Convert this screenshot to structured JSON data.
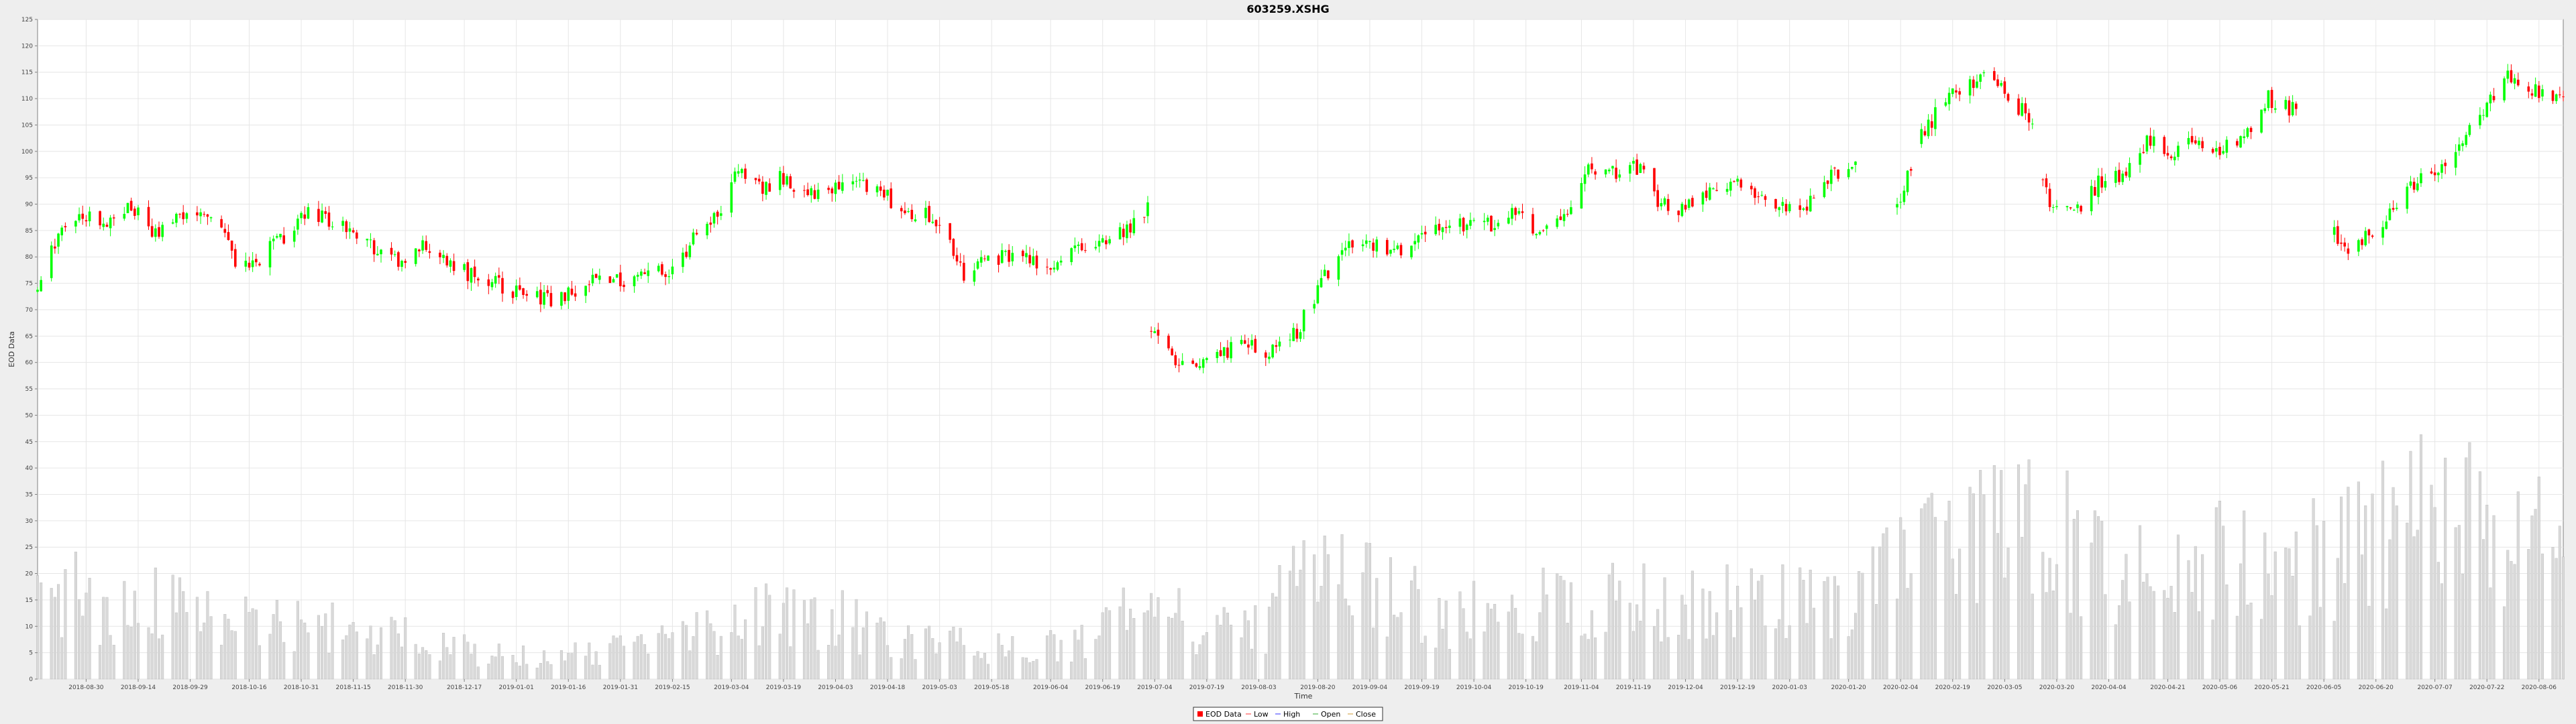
{
  "chart_data": {
    "type": "candlestick",
    "title": "603259.XSHG",
    "xlabel": "Time",
    "ylabel": "EOD Data",
    "ylim": [
      0,
      125
    ],
    "yticks": [
      0,
      5,
      10,
      15,
      20,
      25,
      30,
      35,
      40,
      45,
      50,
      55,
      60,
      65,
      70,
      75,
      80,
      85,
      90,
      95,
      100,
      105,
      110,
      115,
      120,
      125
    ],
    "x_range": [
      "2018-08-16",
      "2020-08-13"
    ],
    "xticks": [
      "2018-08-30",
      "2018-09-14",
      "2018-09-29",
      "2018-10-16",
      "2018-10-31",
      "2018-11-15",
      "2018-11-30",
      "2018-12-17",
      "2019-01-01",
      "2019-01-16",
      "2019-01-31",
      "2019-02-15",
      "2019-03-04",
      "2019-03-19",
      "2019-04-03",
      "2019-04-18",
      "2019-05-03",
      "2019-05-18",
      "2019-06-04",
      "2019-06-19",
      "2019-07-04",
      "2019-07-19",
      "2019-08-03",
      "2019-08-20",
      "2019-09-04",
      "2019-09-19",
      "2019-10-04",
      "2019-10-19",
      "2019-11-04",
      "2019-11-19",
      "2019-12-04",
      "2019-12-19",
      "2020-01-03",
      "2020-01-20",
      "2020-02-04",
      "2020-02-19",
      "2020-03-05",
      "2020-03-20",
      "2020-04-04",
      "2020-04-21",
      "2020-05-06",
      "2020-05-21",
      "2020-06-05",
      "2020-06-20",
      "2020-07-07",
      "2020-07-22",
      "2020-08-06"
    ],
    "grid": true,
    "legend_position": "bottom",
    "legend": [
      "EOD Data",
      "Low",
      "High",
      "Open",
      "Close"
    ],
    "up_color": "#00ff00",
    "down_color": "#ff0000",
    "volume_color": "#d9d9d9",
    "price_anchors": [
      [
        "2018-08-16",
        73
      ],
      [
        "2018-08-22",
        85
      ],
      [
        "2018-08-29",
        88
      ],
      [
        "2018-09-05",
        86
      ],
      [
        "2018-09-12",
        90
      ],
      [
        "2018-09-19",
        84
      ],
      [
        "2018-09-26",
        89
      ],
      [
        "2018-10-08",
        86
      ],
      [
        "2018-10-12",
        78
      ],
      [
        "2018-10-19",
        80
      ],
      [
        "2018-10-25",
        83
      ],
      [
        "2018-11-01",
        88
      ],
      [
        "2018-11-08",
        87
      ],
      [
        "2018-11-15",
        85
      ],
      [
        "2018-11-22",
        81
      ],
      [
        "2018-11-29",
        79
      ],
      [
        "2018-12-06",
        82
      ],
      [
        "2018-12-13",
        79
      ],
      [
        "2018-12-20",
        76
      ],
      [
        "2018-12-27",
        75
      ],
      [
        "2019-01-04",
        72
      ],
      [
        "2019-01-11",
        72
      ],
      [
        "2019-01-18",
        74
      ],
      [
        "2019-01-25",
        76
      ],
      [
        "2019-02-01",
        75
      ],
      [
        "2019-02-15",
        78
      ],
      [
        "2019-02-22",
        84
      ],
      [
        "2019-03-01",
        88
      ],
      [
        "2019-03-05",
        96
      ],
      [
        "2019-03-12",
        93
      ],
      [
        "2019-03-19",
        95
      ],
      [
        "2019-03-26",
        92
      ],
      [
        "2019-04-02",
        93
      ],
      [
        "2019-04-09",
        94
      ],
      [
        "2019-04-16",
        92
      ],
      [
        "2019-04-23",
        89
      ],
      [
        "2019-04-30",
        88
      ],
      [
        "2019-05-06",
        82
      ],
      [
        "2019-05-10",
        77
      ],
      [
        "2019-05-17",
        80
      ],
      [
        "2019-05-24",
        80
      ],
      [
        "2019-05-31",
        79
      ],
      [
        "2019-06-06",
        78
      ],
      [
        "2019-06-13",
        82
      ],
      [
        "2019-06-20",
        84
      ],
      [
        "2019-06-27",
        85
      ],
      [
        "2019-07-02",
        90
      ],
      [
        "2019-07-03",
        66
      ],
      [
        "2019-07-10",
        61
      ],
      [
        "2019-07-17",
        60
      ],
      [
        "2019-07-24",
        62
      ],
      [
        "2019-07-31",
        63
      ],
      [
        "2019-08-07",
        62
      ],
      [
        "2019-08-14",
        66
      ],
      [
        "2019-08-21",
        75
      ],
      [
        "2019-08-28",
        83
      ],
      [
        "2019-09-04",
        82
      ],
      [
        "2019-09-11",
        81
      ],
      [
        "2019-09-18",
        83
      ],
      [
        "2019-09-25",
        86
      ],
      [
        "2019-10-09",
        86
      ],
      [
        "2019-10-16",
        88
      ],
      [
        "2019-10-23",
        84
      ],
      [
        "2019-10-30",
        88
      ],
      [
        "2019-11-06",
        96
      ],
      [
        "2019-11-13",
        96
      ],
      [
        "2019-11-20",
        97
      ],
      [
        "2019-11-27",
        90
      ],
      [
        "2019-12-04",
        89
      ],
      [
        "2019-12-11",
        92
      ],
      [
        "2019-12-18",
        95
      ],
      [
        "2019-12-25",
        91
      ],
      [
        "2020-01-01",
        89
      ],
      [
        "2020-01-08",
        90
      ],
      [
        "2020-01-15",
        95
      ],
      [
        "2020-01-22",
        98
      ],
      [
        "2020-02-03",
        89
      ],
      [
        "2020-02-10",
        103
      ],
      [
        "2020-02-17",
        110
      ],
      [
        "2020-02-24",
        113
      ],
      [
        "2020-03-02",
        115
      ],
      [
        "2020-03-06",
        109
      ],
      [
        "2020-03-12",
        107
      ],
      [
        "2020-03-18",
        90
      ],
      [
        "2020-03-25",
        88
      ],
      [
        "2020-04-01",
        94
      ],
      [
        "2020-04-08",
        96
      ],
      [
        "2020-04-15",
        102
      ],
      [
        "2020-04-22",
        100
      ],
      [
        "2020-04-29",
        103
      ],
      [
        "2020-05-06",
        100
      ],
      [
        "2020-05-13",
        103
      ],
      [
        "2020-05-20",
        110
      ],
      [
        "2020-05-27",
        108
      ],
      [
        "2020-06-03",
        105
      ],
      [
        "2020-06-09",
        81
      ],
      [
        "2020-06-16",
        83
      ],
      [
        "2020-06-23",
        87
      ],
      [
        "2020-06-30",
        94
      ],
      [
        "2020-07-07",
        96
      ],
      [
        "2020-07-14",
        102
      ],
      [
        "2020-07-21",
        108
      ],
      [
        "2020-07-28",
        114
      ],
      [
        "2020-08-04",
        112
      ],
      [
        "2020-08-13",
        109
      ]
    ],
    "price_gaps": [
      [
        "2020-01-23",
        "2020-02-02"
      ],
      [
        "2020-05-29",
        "2020-06-07"
      ]
    ],
    "volume_anchors": [
      [
        "2018-08-16",
        20
      ],
      [
        "2018-09-05",
        12
      ],
      [
        "2018-09-19",
        14
      ],
      [
        "2018-10-12",
        11
      ],
      [
        "2018-11-01",
        10
      ],
      [
        "2018-12-01",
        8
      ],
      [
        "2018-12-20",
        5
      ],
      [
        "2019-01-10",
        4
      ],
      [
        "2019-02-01",
        6
      ],
      [
        "2019-03-01",
        10
      ],
      [
        "2019-03-15",
        13
      ],
      [
        "2019-04-05",
        11
      ],
      [
        "2019-05-01",
        7
      ],
      [
        "2019-05-20",
        6
      ],
      [
        "2019-06-10",
        6
      ],
      [
        "2019-07-03",
        14
      ],
      [
        "2019-07-20",
        9
      ],
      [
        "2019-08-05",
        10
      ],
      [
        "2019-08-20",
        25
      ],
      [
        "2019-09-05",
        18
      ],
      [
        "2019-09-25",
        12
      ],
      [
        "2019-10-20",
        13
      ],
      [
        "2019-11-05",
        16
      ],
      [
        "2019-11-25",
        15
      ],
      [
        "2019-12-15",
        14
      ],
      [
        "2020-01-03",
        14
      ],
      [
        "2020-01-20",
        15
      ],
      [
        "2020-02-10",
        22
      ],
      [
        "2020-03-05",
        28
      ],
      [
        "2020-03-20",
        30
      ],
      [
        "2020-04-05",
        20
      ],
      [
        "2020-04-21",
        18
      ],
      [
        "2020-05-06",
        22
      ],
      [
        "2020-05-21",
        20
      ],
      [
        "2020-06-10",
        24
      ],
      [
        "2020-07-07",
        32
      ],
      [
        "2020-07-22",
        28
      ],
      [
        "2020-08-13",
        24
      ]
    ]
  }
}
